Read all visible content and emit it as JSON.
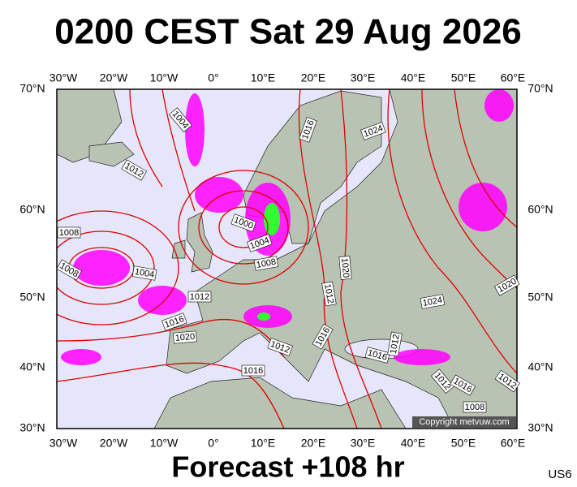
{
  "header": {
    "title": "0200 CEST Sat 29 Aug 2026"
  },
  "longitude_labels": [
    "30°W",
    "20°W",
    "10°W",
    "0°",
    "10°E",
    "20°E",
    "30°E",
    "40°E",
    "50°E",
    "60°E"
  ],
  "latitude_labels": [
    "70°N",
    "60°N",
    "50°N",
    "40°N",
    "30°N"
  ],
  "isobar_labels": [
    "1004",
    "1012",
    "1016",
    "1024",
    "1008",
    "1000",
    "1004",
    "1008",
    "1008",
    "1004",
    "1012",
    "1020",
    "1012",
    "1024",
    "1020",
    "1016",
    "1020",
    "1016",
    "1016",
    "1012",
    "1012",
    "1016",
    "1012",
    "1016",
    "1012",
    "1008"
  ],
  "copyright": "Copyright metvuw.com",
  "footer": {
    "forecast": "Forecast +108 hr",
    "code": "US6"
  }
}
